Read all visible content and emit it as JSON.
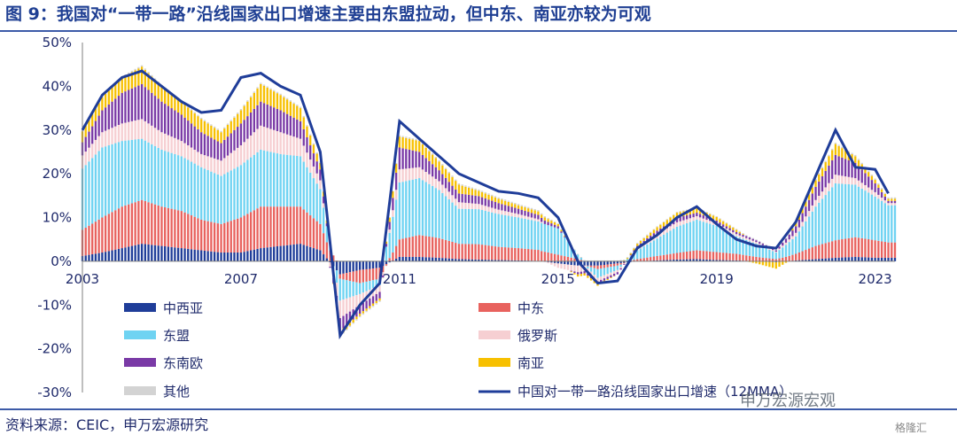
{
  "title": "图 9：我国对“一带一路”沿线国家出口增速主要由东盟拉动，但中东、南亚亦较为可观",
  "source": "资料来源：CEIC，申万宏源研究",
  "watermark": "申万宏源宏观",
  "watermark2": "格隆汇",
  "colors": {
    "中西亚": "#1f3d99",
    "中东": "#e8625e",
    "东盟": "#6fd3f2",
    "俄罗斯": "#f6cfd2",
    "东南欧": "#7a3aa6",
    "南亚": "#f7c000",
    "其他": "#d3d3d3",
    "line": "#1f3d99",
    "axis": "#7f7f7f"
  },
  "chart_data": {
    "type": "bar",
    "stacked": true,
    "title": "",
    "xlabel": "",
    "ylabel": "",
    "ylim": [
      -30,
      50
    ],
    "yticks": [
      "50%",
      "40%",
      "30%",
      "20%",
      "10%",
      "0%",
      "-10%",
      "-20%",
      "-30%"
    ],
    "xticks": [
      "2003",
      "2007",
      "2011",
      "2015",
      "2019",
      "2023"
    ],
    "x": [
      "2003-01",
      "2003-07",
      "2004-01",
      "2004-07",
      "2005-01",
      "2005-07",
      "2006-01",
      "2006-07",
      "2007-01",
      "2007-07",
      "2008-01",
      "2008-07",
      "2009-01",
      "2009-07",
      "2010-01",
      "2010-07",
      "2011-01",
      "2011-07",
      "2012-01",
      "2012-07",
      "2013-01",
      "2013-07",
      "2014-01",
      "2014-07",
      "2015-01",
      "2015-07",
      "2016-01",
      "2016-07",
      "2017-01",
      "2017-07",
      "2018-01",
      "2018-07",
      "2019-01",
      "2019-07",
      "2020-01",
      "2020-07",
      "2021-01",
      "2021-07",
      "2022-01",
      "2022-07",
      "2023-01",
      "2023-05"
    ],
    "series": [
      {
        "name": "中西亚",
        "values": [
          1.2,
          2.0,
          3.0,
          4.0,
          3.5,
          3.0,
          2.5,
          2.0,
          2.0,
          3.0,
          3.5,
          4.0,
          2.5,
          -3.0,
          -2.0,
          -1.5,
          1.0,
          1.0,
          0.8,
          0.5,
          0.4,
          0.3,
          0.2,
          0.1,
          -0.5,
          -1.0,
          -1.0,
          -0.5,
          0.0,
          0.2,
          0.4,
          0.5,
          0.3,
          0.2,
          0.0,
          -0.2,
          0.2,
          0.5,
          0.8,
          1.0,
          0.8,
          0.8
        ]
      },
      {
        "name": "中东",
        "values": [
          6.0,
          8.0,
          9.5,
          10.0,
          9.0,
          8.5,
          7.0,
          6.5,
          8.0,
          9.5,
          9.0,
          8.5,
          6.0,
          -1.0,
          -3.0,
          -2.5,
          4.0,
          5.0,
          4.5,
          3.5,
          3.5,
          3.0,
          2.8,
          2.5,
          1.5,
          0.5,
          -0.8,
          -0.5,
          0.5,
          1.0,
          1.5,
          2.0,
          1.8,
          1.5,
          1.0,
          0.5,
          1.5,
          3.0,
          4.0,
          4.5,
          4.0,
          3.5
        ]
      },
      {
        "name": "东盟",
        "values": [
          14.0,
          16.0,
          15.0,
          14.0,
          13.0,
          12.5,
          12.0,
          11.0,
          12.0,
          13.0,
          12.0,
          11.5,
          8.0,
          -5.0,
          -2.5,
          -1.5,
          13.0,
          13.0,
          11.0,
          8.0,
          8.0,
          7.5,
          7.0,
          6.5,
          6.0,
          1.0,
          -2.0,
          -1.0,
          2.0,
          4.0,
          6.0,
          7.0,
          6.0,
          4.0,
          3.0,
          1.5,
          4.0,
          9.0,
          13.0,
          12.0,
          10.0,
          8.5
        ]
      },
      {
        "name": "俄罗斯",
        "values": [
          3.0,
          3.5,
          4.0,
          4.5,
          4.0,
          3.5,
          3.0,
          3.5,
          4.5,
          5.5,
          5.0,
          4.0,
          2.0,
          -4.0,
          -2.5,
          -1.5,
          3.0,
          2.5,
          2.0,
          1.5,
          1.2,
          1.0,
          0.8,
          0.5,
          -1.0,
          -1.5,
          -0.8,
          -0.5,
          0.5,
          1.0,
          1.0,
          0.8,
          0.6,
          0.5,
          0.4,
          0.2,
          0.8,
          1.5,
          2.0,
          1.5,
          1.0,
          0.5
        ]
      },
      {
        "name": "东南欧",
        "values": [
          3.0,
          5.0,
          7.0,
          8.0,
          7.0,
          6.0,
          5.0,
          4.0,
          5.0,
          5.5,
          5.0,
          4.0,
          2.5,
          -3.0,
          -2.0,
          -1.5,
          5.0,
          3.5,
          2.5,
          2.0,
          1.8,
          1.5,
          1.2,
          1.0,
          0.5,
          -0.5,
          -0.5,
          -0.5,
          0.5,
          0.8,
          1.0,
          0.8,
          0.6,
          0.5,
          0.4,
          0.3,
          1.5,
          3.0,
          4.5,
          3.5,
          2.0,
          0.5
        ]
      },
      {
        "name": "南亚",
        "values": [
          2.5,
          3.0,
          3.5,
          4.0,
          3.5,
          3.0,
          3.0,
          2.5,
          3.0,
          4.0,
          3.5,
          3.0,
          1.5,
          -1.0,
          -0.5,
          -0.5,
          2.5,
          2.5,
          2.0,
          2.0,
          1.2,
          1.0,
          0.8,
          0.8,
          0.5,
          -0.5,
          -0.5,
          0.0,
          0.5,
          0.8,
          1.2,
          1.0,
          0.8,
          0.5,
          -0.5,
          -1.5,
          0.8,
          1.5,
          2.5,
          1.5,
          0.8,
          0.5
        ]
      },
      {
        "name": "其他",
        "values": [
          0.3,
          0.3,
          0.3,
          0.3,
          0.3,
          0.3,
          0.3,
          0.3,
          0.3,
          0.3,
          0.3,
          0.3,
          0.3,
          -0.3,
          -0.3,
          -0.3,
          0.3,
          0.3,
          0.3,
          0.3,
          0.3,
          0.3,
          0.3,
          0.3,
          0.2,
          0.2,
          0.2,
          0.2,
          0.2,
          0.2,
          0.2,
          0.2,
          0.2,
          0.2,
          0.2,
          0.2,
          0.2,
          0.3,
          0.3,
          0.3,
          0.3,
          0.3
        ]
      }
    ],
    "line": {
      "name": "中国对一带一路沿线国家出口增速（12MMA）",
      "values": [
        30.0,
        38.0,
        42.0,
        43.5,
        40.0,
        36.5,
        34.0,
        34.5,
        42.0,
        43.0,
        40.0,
        38.0,
        25.0,
        -17.0,
        -10.0,
        -5.0,
        32.0,
        28.0,
        24.0,
        20.0,
        18.0,
        16.0,
        15.5,
        14.5,
        10.0,
        0.0,
        -5.0,
        -4.5,
        3.0,
        6.0,
        10.0,
        12.5,
        8.5,
        5.0,
        3.5,
        3.0,
        9.0,
        19.5,
        30.0,
        21.5,
        21.0,
        15.5
      ]
    },
    "legend": [
      {
        "label": "中西亚",
        "kind": "bar",
        "color_key": "中西亚"
      },
      {
        "label": "中东",
        "kind": "bar",
        "color_key": "中东"
      },
      {
        "label": "东盟",
        "kind": "bar",
        "color_key": "东盟"
      },
      {
        "label": "俄罗斯",
        "kind": "bar",
        "color_key": "俄罗斯"
      },
      {
        "label": "东南欧",
        "kind": "bar",
        "color_key": "东南欧"
      },
      {
        "label": "南亚",
        "kind": "bar",
        "color_key": "南亚"
      },
      {
        "label": "其他",
        "kind": "bar",
        "color_key": "其他"
      },
      {
        "label": "中国对一带一路沿线国家出口增速（12MMA）",
        "kind": "line",
        "color_key": "line"
      }
    ]
  }
}
